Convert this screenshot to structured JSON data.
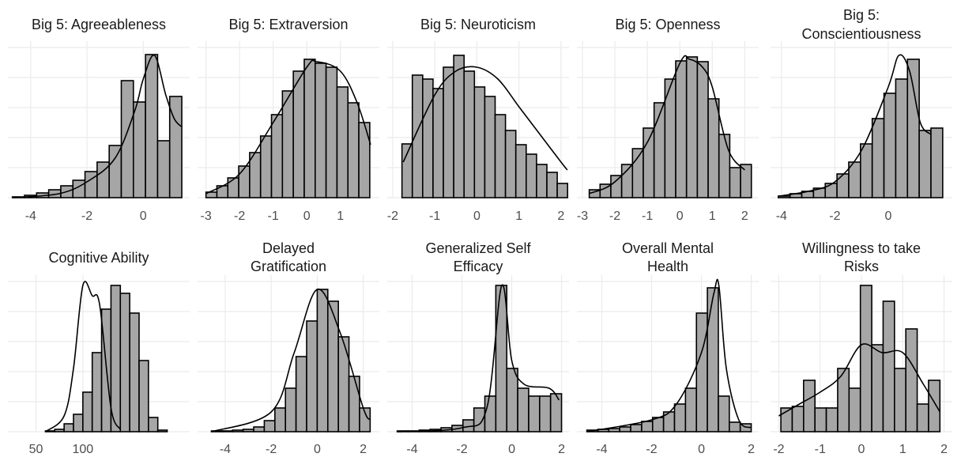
{
  "chart_data": [
    {
      "type": "histogram",
      "title": "Big 5: Agreeableness",
      "xlim": [
        -4.81,
        1.65
      ],
      "xticks": [
        -4,
        -2,
        0
      ],
      "ylim": [
        0,
        190
      ],
      "bins": [
        -4.65,
        -4.22,
        -3.79,
        -3.36,
        -2.93,
        -2.5,
        -2.07,
        -1.64,
        -1.21,
        -0.78,
        -0.35,
        0.08,
        0.51,
        0.94,
        1.37
      ],
      "values": [
        1,
        3,
        6,
        10,
        15,
        22,
        33,
        45,
        66,
        148,
        121,
        181,
        72,
        128
      ],
      "color": "#a6a6a6",
      "density": {
        "x": [
          -4.6,
          -3,
          -2,
          -1,
          -0.3,
          0,
          0.4,
          0.8,
          1.1,
          1.35
        ],
        "values": [
          0,
          5,
          20,
          50,
          110,
          150,
          180,
          130,
          100,
          90
        ]
      }
    },
    {
      "type": "histogram",
      "title": "Big 5: Extraversion",
      "xlim": [
        -3.25,
        2.16
      ],
      "xticks": [
        -3,
        -2,
        -1,
        0,
        1
      ],
      "ylim": [
        0,
        190
      ],
      "bins": [
        -3,
        -2.675,
        -2.35,
        -2.025,
        -1.7,
        -1.375,
        -1.05,
        -0.725,
        -0.4,
        -0.075,
        0.25,
        0.575,
        0.9,
        1.225,
        1.55,
        1.875
      ],
      "values": [
        7,
        15,
        25,
        40,
        57,
        78,
        105,
        135,
        160,
        175,
        170,
        165,
        140,
        120,
        95
      ],
      "color": "#a6a6a6",
      "density": {
        "x": [
          -3,
          -2,
          -1,
          0,
          0.3,
          1,
          1.5,
          1.9
        ],
        "values": [
          5,
          30,
          95,
          165,
          172,
          160,
          120,
          67
        ]
      }
    },
    {
      "type": "histogram",
      "title": "Big 5: Neuroticism",
      "xlim": [
        -2.13,
        2.19
      ],
      "xticks": [
        -2,
        -1,
        0,
        1,
        2
      ],
      "ylim": [
        0,
        190
      ],
      "bins": [
        -1.78,
        -1.534,
        -1.288,
        -1.042,
        -0.796,
        -0.55,
        -0.304,
        -0.058,
        0.188,
        0.434,
        0.68,
        0.926,
        1.172,
        1.418,
        1.664,
        1.91,
        2.156
      ],
      "values": [
        68,
        155,
        150,
        138,
        165,
        180,
        160,
        140,
        128,
        105,
        85,
        67,
        55,
        42,
        32,
        18
      ],
      "color": "#a6a6a6",
      "density": {
        "x": [
          -1.75,
          -1,
          -0.5,
          0,
          0.5,
          1,
          1.5,
          2,
          2.15
        ],
        "values": [
          45,
          130,
          160,
          165,
          150,
          115,
          80,
          45,
          35
        ]
      }
    },
    {
      "type": "histogram",
      "title": "Big 5: Openness",
      "xlim": [
        -3.17,
        2.43
      ],
      "xticks": [
        -3,
        -2,
        -1,
        0,
        1,
        2
      ],
      "ylim": [
        0,
        190
      ],
      "bins": [
        -2.79,
        -2.457,
        -2.124,
        -1.791,
        -1.458,
        -1.125,
        -0.792,
        -0.459,
        -0.126,
        0.207,
        0.54,
        0.873,
        1.206,
        1.539,
        1.872,
        2.205
      ],
      "values": [
        10,
        17,
        28,
        42,
        62,
        88,
        120,
        150,
        173,
        178,
        172,
        125,
        80,
        38,
        42
      ],
      "color": "#a6a6a6",
      "density": {
        "x": [
          -2.8,
          -2,
          -1,
          0,
          0.3,
          0.7,
          1,
          1.5,
          2
        ],
        "values": [
          5,
          20,
          70,
          170,
          175,
          165,
          140,
          60,
          35
        ]
      }
    },
    {
      "type": "histogram",
      "title": [
        "Big 5:",
        "Conscientiousness"
      ],
      "xlim": [
        -4.41,
        2.4
      ],
      "xticks": [
        -4,
        -2,
        0
      ],
      "ylim": [
        0,
        190
      ],
      "bins": [
        -4.12,
        -3.68,
        -3.24,
        -2.8,
        -2.36,
        -1.92,
        -1.48,
        -1.04,
        -0.6,
        -0.16,
        0.28,
        0.72,
        1.16,
        1.6,
        2.04
      ],
      "values": [
        2,
        5,
        8,
        12,
        18,
        30,
        45,
        68,
        100,
        132,
        150,
        175,
        85,
        88
      ],
      "color": "#a6a6a6",
      "density": {
        "x": [
          -4.1,
          -3,
          -2,
          -1,
          0,
          0.4,
          0.8,
          1.2,
          1.6
        ],
        "values": [
          2,
          8,
          20,
          60,
          140,
          180,
          160,
          95,
          80
        ]
      }
    },
    {
      "type": "histogram",
      "title": "Cognitive Ability",
      "xlim": [
        20,
        214
      ],
      "xticks": [
        50,
        100
      ],
      "ylim": [
        0,
        190
      ],
      "bins": [
        60,
        70,
        80,
        90,
        100,
        110,
        120,
        130,
        140,
        150,
        160,
        170,
        180,
        190
      ],
      "values": [
        1,
        3,
        10,
        22,
        50,
        100,
        155,
        185,
        175,
        150,
        90,
        18,
        2
      ],
      "color": "#a6a6a6",
      "density": {
        "x": [
          60,
          80,
          90,
          100,
          110,
          118,
          130,
          140
        ],
        "values": [
          0,
          20,
          80,
          185,
          172,
          160,
          30,
          3
        ]
      }
    },
    {
      "type": "histogram",
      "title": [
        "Delayed",
        "Gratification"
      ],
      "xlim": [
        -5.2,
        2.7
      ],
      "xticks": [
        -4,
        -2,
        0,
        2
      ],
      "ylim": [
        0,
        190
      ],
      "bins": [
        -4.6,
        -4.14,
        -3.68,
        -3.22,
        -2.76,
        -2.3,
        -1.84,
        -1.38,
        -0.92,
        -0.46,
        0,
        0.46,
        0.92,
        1.38,
        1.84,
        2.3
      ],
      "values": [
        1,
        1,
        2,
        3,
        6,
        14,
        30,
        55,
        95,
        140,
        180,
        165,
        120,
        70,
        30
      ],
      "color": "#a6a6a6",
      "density": {
        "x": [
          -4.6,
          -2,
          -1,
          0,
          1,
          2,
          2.3
        ],
        "values": [
          0,
          25,
          100,
          180,
          125,
          30,
          15
        ]
      }
    },
    {
      "type": "histogram",
      "title": [
        "Generalized Self",
        "Efficacy"
      ],
      "xlim": [
        -5.0,
        2.3
      ],
      "xticks": [
        -4,
        -2,
        0,
        2
      ],
      "ylim": [
        0,
        190
      ],
      "bins": [
        -4.6,
        -4.16,
        -3.72,
        -3.28,
        -2.84,
        -2.4,
        -1.96,
        -1.52,
        -1.08,
        -0.64,
        -0.2,
        0.24,
        0.68,
        1.12,
        1.56,
        2.0
      ],
      "values": [
        1,
        1,
        2,
        3,
        5,
        8,
        15,
        30,
        45,
        185,
        80,
        55,
        45,
        45,
        48
      ],
      "color": "#a6a6a6",
      "density": {
        "x": [
          -4.6,
          -2,
          -1,
          -0.4,
          0,
          0.5,
          1.5,
          1.9
        ],
        "values": [
          0,
          5,
          30,
          185,
          90,
          60,
          55,
          40
        ]
      }
    },
    {
      "type": "histogram",
      "title": [
        "Overall Mental",
        "Health"
      ],
      "xlim": [
        -5.0,
        2.3
      ],
      "xticks": [
        -4,
        -2,
        0,
        2
      ],
      "ylim": [
        0,
        190
      ],
      "bins": [
        -4.6,
        -4.16,
        -3.72,
        -3.28,
        -2.84,
        -2.4,
        -1.96,
        -1.52,
        -1.08,
        -0.64,
        -0.2,
        0.24,
        0.68,
        1.12,
        1.56,
        2.0
      ],
      "values": [
        2,
        3,
        4,
        6,
        9,
        13,
        18,
        25,
        35,
        55,
        150,
        182,
        45,
        12,
        10
      ],
      "color": "#a6a6a6",
      "density": {
        "x": [
          -4.6,
          -2,
          -1,
          0,
          0.5,
          0.7,
          1,
          1.5,
          2
        ],
        "values": [
          0,
          15,
          35,
          100,
          175,
          185,
          80,
          15,
          5
        ]
      }
    },
    {
      "type": "histogram",
      "title": [
        "Willingness to take",
        "Risks"
      ],
      "xlim": [
        -2.2,
        2.2
      ],
      "xticks": [
        -2,
        -1,
        0,
        1,
        2
      ],
      "ylim": [
        0,
        190
      ],
      "bins": [
        -1.95,
        -1.675,
        -1.4,
        -1.125,
        -0.85,
        -0.575,
        -0.3,
        -0.025,
        0.25,
        0.525,
        0.8,
        1.075,
        1.35,
        1.625,
        1.9
      ],
      "values": [
        30,
        32,
        65,
        30,
        30,
        80,
        55,
        185,
        110,
        165,
        80,
        130,
        35,
        65
      ],
      "color": "#a6a6a6",
      "density": {
        "x": [
          -2,
          -1.5,
          -1,
          -0.5,
          0,
          0.5,
          1,
          1.5,
          1.9
        ],
        "values": [
          20,
          35,
          50,
          70,
          110,
          100,
          100,
          60,
          25
        ]
      }
    }
  ]
}
